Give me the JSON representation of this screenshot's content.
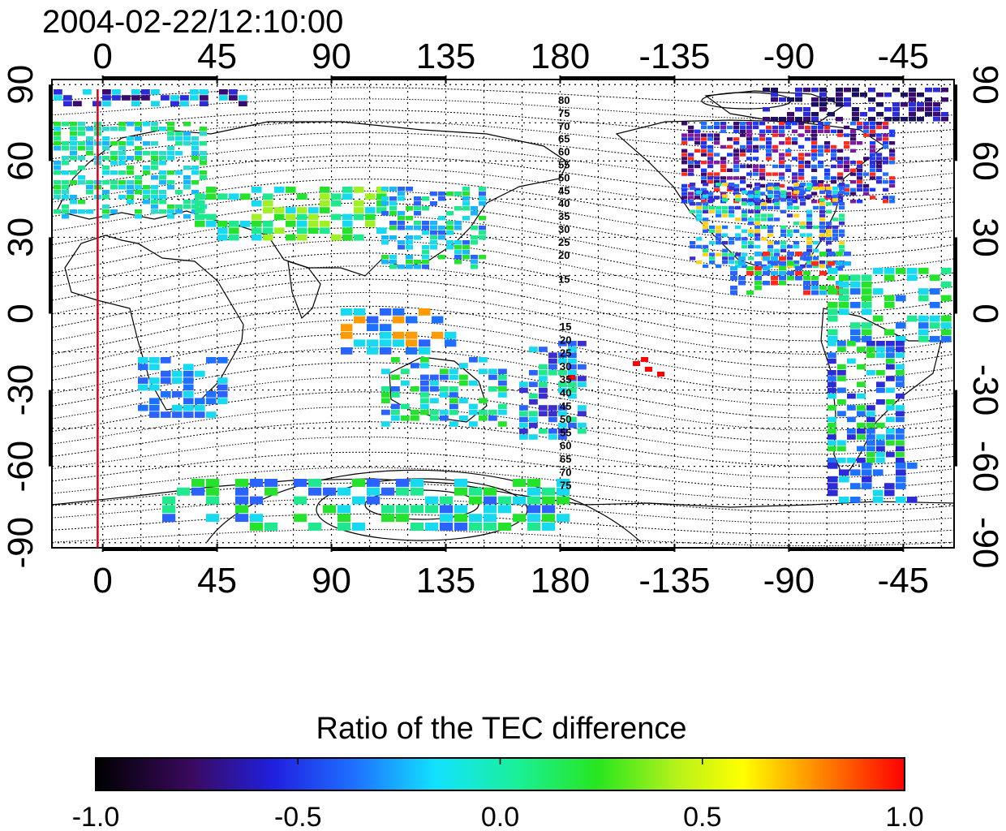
{
  "timestamp": "2004-02-22/12:10:00",
  "colorbar": {
    "title": "Ratio of the TEC difference",
    "ticks": [
      "-1.0",
      "-0.5",
      "0.0",
      "0.5",
      "1.0"
    ],
    "min": -1.0,
    "max": 1.0
  },
  "axes": {
    "lon_ticks": [
      "0",
      "45",
      "90",
      "135",
      "180",
      "-135",
      "-90",
      "-45"
    ],
    "lon_values": [
      0,
      45,
      90,
      135,
      180,
      225,
      270,
      315
    ],
    "lat_ticks_left": [
      "90",
      "60",
      "30",
      "0",
      "-30",
      "-60",
      "-90"
    ],
    "lat_ticks_right": [
      "90",
      "60",
      "30",
      "0",
      "-30",
      "-60",
      "-90"
    ],
    "lat_values": [
      90,
      60,
      30,
      0,
      -30,
      -60,
      -90
    ],
    "lon_range": [
      -20,
      335
    ],
    "lat_range": [
      -92,
      92
    ]
  },
  "marker_meridian_lon": -2,
  "contour_labels_north": [
    "80",
    "75",
    "70",
    "65",
    "60",
    "55",
    "50",
    "45",
    "40",
    "35",
    "30",
    "25",
    "20",
    "15"
  ],
  "contour_labels_south": [
    "15",
    "20",
    "25",
    "30",
    "35",
    "40",
    "45",
    "50",
    "55",
    "60",
    "65",
    "70",
    "75"
  ],
  "colors": {
    "marker_line": "#d9001b",
    "frame": "#000000"
  }
}
